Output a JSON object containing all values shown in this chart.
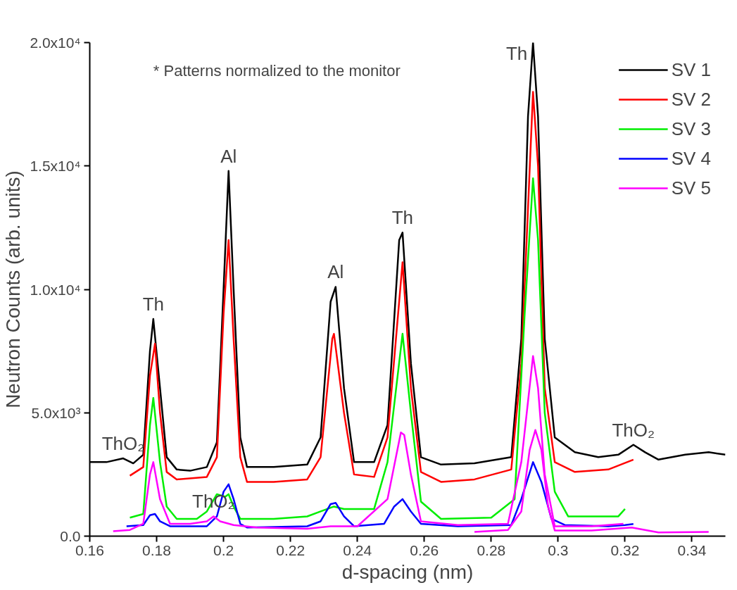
{
  "chart_data": {
    "type": "line",
    "xlabel": "d-spacing (nm)",
    "ylabel": "Neutron Counts (arb. units)",
    "xlim": [
      0.16,
      0.35
    ],
    "ylim": [
      0,
      20000
    ],
    "xticks": [
      0.16,
      0.18,
      0.2,
      0.22,
      0.24,
      0.26,
      0.28,
      0.3,
      0.32,
      0.34
    ],
    "yticks": [
      {
        "value": 0,
        "label": "0.0"
      },
      {
        "value": 5000,
        "label": "5.0x10³"
      },
      {
        "value": 10000,
        "label": "1.0x10⁴"
      },
      {
        "value": 15000,
        "label": "1.5x10⁴"
      },
      {
        "value": 20000,
        "label": "2.0x10⁴"
      }
    ],
    "grid": false,
    "legend": "top right",
    "marker": "none",
    "line_style": "solid",
    "series": [
      {
        "name": "SV 1",
        "color": "#000000",
        "x": [
          0.16,
          0.165,
          0.17,
          0.173,
          0.176,
          0.178,
          0.179,
          0.181,
          0.183,
          0.186,
          0.19,
          0.195,
          0.198,
          0.2,
          0.2015,
          0.203,
          0.205,
          0.207,
          0.215,
          0.225,
          0.229,
          0.232,
          0.2335,
          0.236,
          0.239,
          0.245,
          0.249,
          0.2525,
          0.2535,
          0.256,
          0.259,
          0.265,
          0.275,
          0.286,
          0.289,
          0.291,
          0.2925,
          0.294,
          0.296,
          0.299,
          0.305,
          0.312,
          0.318,
          0.3225,
          0.326,
          0.33,
          0.338,
          0.345,
          0.35
        ],
        "values": [
          3000,
          3000,
          3150,
          2950,
          3300,
          7500,
          8800,
          6000,
          3200,
          2700,
          2650,
          2800,
          3800,
          10000,
          14800,
          10000,
          4000,
          2800,
          2800,
          2900,
          4000,
          9500,
          10100,
          6000,
          3000,
          3000,
          4500,
          12000,
          12300,
          7000,
          3200,
          2900,
          2950,
          3200,
          8000,
          17000,
          20000,
          17000,
          8000,
          4000,
          3400,
          3200,
          3300,
          3700,
          3400,
          3100,
          3300,
          3400,
          3300
        ]
      },
      {
        "name": "SV 2",
        "color": "#ff0000",
        "x": [
          0.172,
          0.176,
          0.178,
          0.1795,
          0.181,
          0.183,
          0.186,
          0.195,
          0.198,
          0.2,
          0.2015,
          0.203,
          0.205,
          0.207,
          0.215,
          0.225,
          0.229,
          0.2325,
          0.233,
          0.236,
          0.239,
          0.245,
          0.249,
          0.2535,
          0.256,
          0.259,
          0.265,
          0.275,
          0.286,
          0.289,
          0.2925,
          0.294,
          0.296,
          0.299,
          0.305,
          0.315,
          0.3225
        ],
        "values": [
          2450,
          2800,
          6500,
          7800,
          5000,
          2600,
          2300,
          2400,
          3200,
          9000,
          12000,
          8000,
          3200,
          2200,
          2200,
          2300,
          3200,
          8000,
          8200,
          5000,
          2500,
          2400,
          4000,
          11100,
          6000,
          2600,
          2200,
          2300,
          2700,
          7000,
          18000,
          15000,
          6000,
          3000,
          2600,
          2700,
          3100
        ]
      },
      {
        "name": "SV 3",
        "color": "#00ee00",
        "x": [
          0.172,
          0.176,
          0.178,
          0.179,
          0.181,
          0.183,
          0.186,
          0.192,
          0.195,
          0.198,
          0.2005,
          0.2015,
          0.203,
          0.205,
          0.215,
          0.225,
          0.229,
          0.233,
          0.236,
          0.24,
          0.245,
          0.249,
          0.2535,
          0.256,
          0.259,
          0.265,
          0.28,
          0.287,
          0.29,
          0.2925,
          0.294,
          0.296,
          0.299,
          0.303,
          0.315,
          0.318,
          0.32
        ],
        "values": [
          750,
          900,
          4500,
          5600,
          3000,
          1200,
          700,
          700,
          1000,
          1700,
          1600,
          1700,
          1200,
          700,
          700,
          800,
          1000,
          1200,
          1100,
          1100,
          1100,
          3000,
          8200,
          5000,
          1400,
          700,
          750,
          1500,
          9000,
          14500,
          12000,
          5000,
          1800,
          800,
          800,
          800,
          1100
        ]
      },
      {
        "name": "SV 4",
        "color": "#0000ff",
        "x": [
          0.171,
          0.176,
          0.178,
          0.1795,
          0.181,
          0.184,
          0.195,
          0.198,
          0.2,
          0.2015,
          0.203,
          0.205,
          0.207,
          0.225,
          0.229,
          0.232,
          0.2335,
          0.236,
          0.239,
          0.248,
          0.251,
          0.2535,
          0.256,
          0.259,
          0.27,
          0.286,
          0.289,
          0.2925,
          0.295,
          0.298,
          0.302,
          0.315,
          0.32,
          0.3225
        ],
        "values": [
          400,
          450,
          850,
          900,
          600,
          400,
          400,
          800,
          1800,
          2100,
          1500,
          500,
          350,
          400,
          600,
          1300,
          1350,
          800,
          400,
          500,
          1200,
          1500,
          1000,
          500,
          400,
          450,
          1500,
          3000,
          2200,
          700,
          450,
          400,
          450,
          490
        ]
      },
      {
        "name": "SV 5",
        "color": "#ff00ff",
        "x": [
          0.167,
          0.172,
          0.176,
          0.178,
          0.179,
          0.181,
          0.184,
          0.19,
          0.195,
          0.197,
          0.199,
          0.203,
          0.21,
          0.225,
          0.232,
          0.24,
          0.249,
          0.253,
          0.254,
          0.256,
          0.259,
          0.27,
          0.285,
          0.289,
          0.2925,
          0.294,
          0.296,
          0.299,
          0.31,
          0.3195
        ],
        "values": [
          200,
          250,
          500,
          2500,
          3000,
          1500,
          500,
          500,
          600,
          800,
          600,
          450,
          350,
          300,
          400,
          400,
          1500,
          4200,
          4100,
          2500,
          600,
          450,
          500,
          3000,
          7300,
          6000,
          2500,
          400,
          400,
          500
        ]
      },
      {
        "color": "#ff00ff",
        "x": [
          0.275,
          0.285,
          0.289,
          0.2915,
          0.2932,
          0.295,
          0.297,
          0.299,
          0.31,
          0.322,
          0.33,
          0.345
        ],
        "values": [
          170,
          250,
          1000,
          3500,
          4300,
          3500,
          1200,
          230,
          230,
          350,
          150,
          170
        ]
      }
    ],
    "annotations": [
      "* Patterns normalized to the monitor",
      {
        "text": "Th",
        "x": 0.179,
        "y": 8800
      },
      {
        "text": "Al",
        "x": 0.2015,
        "y": 14800
      },
      {
        "text": "Al",
        "x": 0.2335,
        "y": 10100
      },
      {
        "text": "Th",
        "x": 0.2535,
        "y": 12300
      },
      {
        "text": "Th",
        "x": 0.2925,
        "y": 20000
      },
      {
        "text": "ThO₂",
        "x": 0.17,
        "y": 3150
      },
      {
        "text": "ThO₂",
        "x": 0.197,
        "y": 800
      },
      {
        "text": "ThO₂",
        "x": 0.3225,
        "y": 3700
      }
    ]
  }
}
